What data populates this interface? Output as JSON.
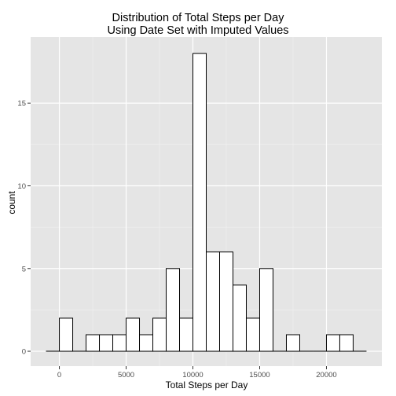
{
  "chart_data": {
    "type": "bar",
    "title_lines": [
      "Distribution of Total Steps per Day",
      "Using Date Set with Imputed Values"
    ],
    "xlabel": "Total Steps per Day",
    "ylabel": "count",
    "xlim": [
      -2150,
      24150
    ],
    "ylim": [
      -0.9,
      19.0
    ],
    "x_ticks": [
      0,
      5000,
      10000,
      15000,
      20000
    ],
    "x_tick_labels": [
      "0",
      "5000",
      "10000",
      "15000",
      "20000"
    ],
    "y_ticks": [
      0,
      5,
      10,
      15
    ],
    "y_tick_labels": [
      "0",
      "5",
      "10",
      "15"
    ],
    "bin_width": 1000,
    "bins": [
      {
        "start": -1000,
        "count": 0
      },
      {
        "start": 0,
        "count": 2
      },
      {
        "start": 1000,
        "count": 0
      },
      {
        "start": 2000,
        "count": 1
      },
      {
        "start": 3000,
        "count": 1
      },
      {
        "start": 4000,
        "count": 1
      },
      {
        "start": 5000,
        "count": 2
      },
      {
        "start": 6000,
        "count": 1
      },
      {
        "start": 7000,
        "count": 2
      },
      {
        "start": 8000,
        "count": 5
      },
      {
        "start": 9000,
        "count": 2
      },
      {
        "start": 10000,
        "count": 18
      },
      {
        "start": 11000,
        "count": 6
      },
      {
        "start": 12000,
        "count": 6
      },
      {
        "start": 13000,
        "count": 4
      },
      {
        "start": 14000,
        "count": 2
      },
      {
        "start": 15000,
        "count": 5
      },
      {
        "start": 16000,
        "count": 0
      },
      {
        "start": 17000,
        "count": 1
      },
      {
        "start": 18000,
        "count": 0
      },
      {
        "start": 19000,
        "count": 0
      },
      {
        "start": 20000,
        "count": 1
      },
      {
        "start": 21000,
        "count": 1
      },
      {
        "start": 22000,
        "count": 0
      }
    ],
    "grid": true,
    "colors": {
      "panel_background": "#e5e5e5",
      "grid_major": "#ffffff",
      "grid_minor": "#f2f2f2",
      "bar_fill": "#ffffff",
      "bar_stroke": "#000000",
      "tick_label": "#4d4d4d"
    }
  }
}
